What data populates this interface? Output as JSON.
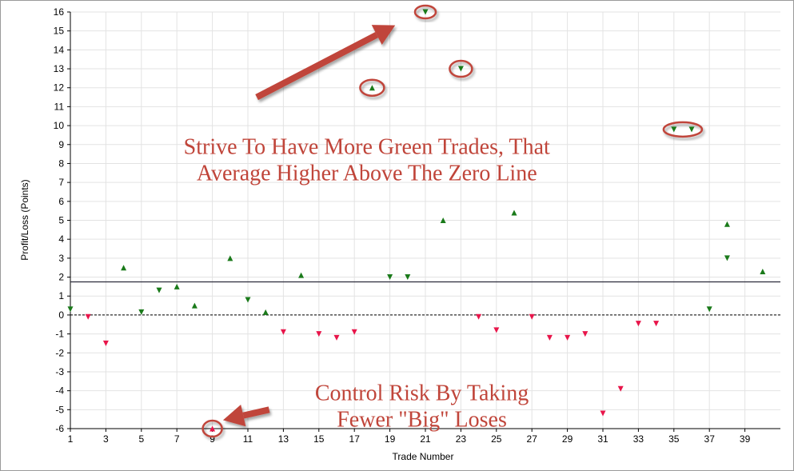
{
  "chart_data": {
    "type": "scatter",
    "xlabel": "Trade Number",
    "ylabel": "Profit/Loss (Points)",
    "xlim": [
      1,
      41
    ],
    "ylim": [
      -6,
      16
    ],
    "x_ticks": [
      1,
      3,
      5,
      7,
      9,
      11,
      13,
      15,
      17,
      19,
      21,
      23,
      25,
      27,
      29,
      31,
      33,
      35,
      37,
      39
    ],
    "y_ticks": [
      -6,
      -5,
      -4,
      -3,
      -2,
      -1,
      0,
      1,
      2,
      3,
      4,
      5,
      6,
      7,
      8,
      9,
      10,
      11,
      12,
      13,
      14,
      15,
      16
    ],
    "grid": true,
    "zero_line": 0,
    "average_line": 1.75,
    "colors": {
      "win": "#1a7a1a",
      "loss": "#e8154a",
      "average_line": "#2b2b3b",
      "annotation": "#c0453a"
    },
    "series": [
      {
        "marker": "triangle-up",
        "color": "#1a7a1a",
        "points": [
          {
            "x": 4,
            "y": 2.5
          },
          {
            "x": 7,
            "y": 1.5
          },
          {
            "x": 8,
            "y": 0.5
          },
          {
            "x": 10,
            "y": 3
          },
          {
            "x": 12,
            "y": 0.15
          },
          {
            "x": 14,
            "y": 2.1
          },
          {
            "x": 18,
            "y": 12
          },
          {
            "x": 22,
            "y": 5
          },
          {
            "x": 26,
            "y": 5.4
          },
          {
            "x": 38,
            "y": 4.8
          },
          {
            "x": 40,
            "y": 2.3
          }
        ]
      },
      {
        "marker": "triangle-down",
        "color": "#1a7a1a",
        "points": [
          {
            "x": 1,
            "y": 0.3
          },
          {
            "x": 5,
            "y": 0.15
          },
          {
            "x": 6,
            "y": 1.3
          },
          {
            "x": 11,
            "y": 0.8
          },
          {
            "x": 19,
            "y": 2
          },
          {
            "x": 20,
            "y": 2
          },
          {
            "x": 21,
            "y": 16
          },
          {
            "x": 23,
            "y": 13
          },
          {
            "x": 35,
            "y": 9.8
          },
          {
            "x": 36,
            "y": 9.8
          },
          {
            "x": 37,
            "y": 0.3
          },
          {
            "x": 38,
            "y": 3
          }
        ]
      },
      {
        "marker": "triangle-up",
        "color": "#e8154a",
        "points": [
          {
            "x": 9,
            "y": -6
          }
        ]
      },
      {
        "marker": "triangle-down",
        "color": "#e8154a",
        "points": [
          {
            "x": 2,
            "y": -0.1
          },
          {
            "x": 3,
            "y": -1.5
          },
          {
            "x": 13,
            "y": -0.9
          },
          {
            "x": 15,
            "y": -1
          },
          {
            "x": 16,
            "y": -1.2
          },
          {
            "x": 17,
            "y": -0.9
          },
          {
            "x": 24,
            "y": -0.1
          },
          {
            "x": 25,
            "y": -0.8
          },
          {
            "x": 27,
            "y": -0.1
          },
          {
            "x": 28,
            "y": -1.2
          },
          {
            "x": 29,
            "y": -1.2
          },
          {
            "x": 30,
            "y": -1
          },
          {
            "x": 31,
            "y": -5.2
          },
          {
            "x": 32,
            "y": -3.9
          },
          {
            "x": 33,
            "y": -0.45
          },
          {
            "x": 34,
            "y": -0.45
          }
        ]
      }
    ],
    "highlighted_points": [
      {
        "x": 18,
        "y": 12
      },
      {
        "x": 21,
        "y": 16
      },
      {
        "x": 23,
        "y": 13
      },
      {
        "x": 35,
        "y": 9.8
      },
      {
        "x": 36,
        "y": 9.8
      },
      {
        "x": 9,
        "y": -6
      }
    ],
    "annotations": [
      {
        "lines": [
          "Strive To Have More Green Trades, That",
          "Average Higher Above The Zero Line"
        ],
        "x": 17.7,
        "y": 8.5
      },
      {
        "lines": [
          "Control Risk By Taking",
          "Fewer \"Big\" Loses"
        ],
        "x": 20.8,
        "y": -4.5
      }
    ],
    "arrows": [
      {
        "from": [
          11.5,
          11.5
        ],
        "to": [
          19.3,
          15.3
        ]
      },
      {
        "from": [
          12.2,
          -5
        ],
        "to": [
          9.6,
          -5.55
        ]
      }
    ]
  }
}
